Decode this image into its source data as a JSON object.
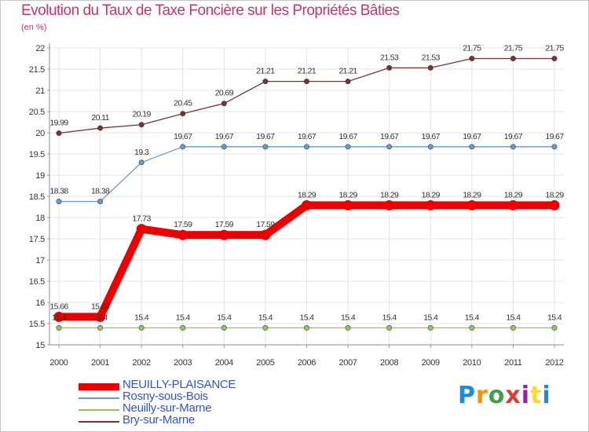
{
  "chart_data": {
    "type": "line",
    "title": "Evolution du Taux de Taxe Foncière sur les Propriétés Bâties",
    "unit_label": "(en %)",
    "xlabel": "",
    "ylabel": "",
    "ylim": [
      15,
      22
    ],
    "yticks": [
      "15",
      "15.5",
      "16",
      "16.5",
      "17",
      "17.5",
      "18",
      "18.5",
      "19",
      "19.5",
      "20",
      "20.5",
      "21",
      "21.5",
      "22"
    ],
    "categories": [
      "2000",
      "2001",
      "2002",
      "2003",
      "2004",
      "2005",
      "2006",
      "2007",
      "2008",
      "2009",
      "2010",
      "2011",
      "2012"
    ],
    "grid": true,
    "legend_position": "bottom-left",
    "series": [
      {
        "name": "NEUILLY-PLAISANCE",
        "color": "#ee0000",
        "emphasis": true,
        "values": [
          15.66,
          15.66,
          17.73,
          17.59,
          17.59,
          17.59,
          18.29,
          18.29,
          18.29,
          18.29,
          18.29,
          18.29,
          18.29
        ],
        "labels": [
          "15.66",
          "15.66",
          "17.73",
          "17.59",
          "17.59",
          "17.59",
          "18.29",
          "18.29",
          "18.29",
          "18.29",
          "18.29",
          "18.29",
          "18.29"
        ]
      },
      {
        "name": "Rosny-sous-Bois",
        "color": "#6699cc",
        "emphasis": false,
        "values": [
          18.38,
          18.38,
          19.3,
          19.67,
          19.67,
          19.67,
          19.67,
          19.67,
          19.67,
          19.67,
          19.67,
          19.67,
          19.67
        ],
        "labels": [
          "18.38",
          "18.38",
          "19.3",
          "19.67",
          "19.67",
          "19.67",
          "19.67",
          "19.67",
          "19.67",
          "19.67",
          "19.67",
          "19.67",
          "19.67"
        ]
      },
      {
        "name": "Neuilly-sur-Marne",
        "color": "#88cc55",
        "emphasis": false,
        "values": [
          15.4,
          15.4,
          15.4,
          15.4,
          15.4,
          15.4,
          15.4,
          15.4,
          15.4,
          15.4,
          15.4,
          15.4,
          15.4
        ],
        "labels": [
          "15.4",
          "15.4",
          "15.4",
          "15.4",
          "15.4",
          "15.4",
          "15.4",
          "15.4",
          "15.4",
          "15.4",
          "15.4",
          "15.4",
          "15.4"
        ]
      },
      {
        "name": "Bry-sur-Marne",
        "color": "#773333",
        "emphasis": false,
        "values": [
          19.99,
          20.11,
          20.19,
          20.45,
          20.69,
          21.21,
          21.21,
          21.21,
          21.53,
          21.53,
          21.75,
          21.75,
          21.75
        ],
        "labels": [
          "19.99",
          "20.11",
          "20.19",
          "20.45",
          "20.69",
          "21.21",
          "21.21",
          "21.21",
          "21.53",
          "21.53",
          "21.75",
          "21.75",
          "21.75"
        ]
      }
    ]
  },
  "logo": {
    "text": "Proxiti",
    "letters": [
      "P",
      "r",
      "o",
      "x",
      "i",
      "t",
      "i"
    ]
  }
}
